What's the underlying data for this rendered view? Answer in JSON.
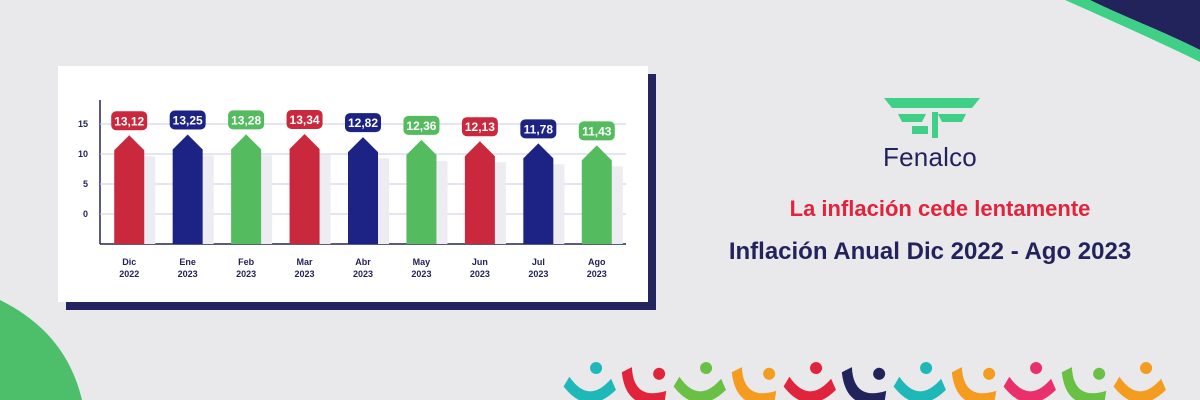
{
  "brand": {
    "name": "Fenalco",
    "logo_icon": "fenalco-wings-logo-icon"
  },
  "headline": "La inflación cede lentamente",
  "subheadline": "Inflación Anual Dic 2022 - Ago 2023",
  "colors": {
    "red": "#c9283d",
    "navy": "#1d2384",
    "green": "#55bb5f",
    "headline_red": "#e0243c",
    "dark_navy": "#23235c",
    "teal_logo": "#3fcf86"
  },
  "decor": {
    "bottom_icons": [
      "person-icon-teal",
      "person-icon-red",
      "person-icon-green",
      "person-icon-orange",
      "person-icon-red",
      "person-icon-navy",
      "person-icon-teal",
      "person-icon-orange",
      "person-icon-pink",
      "person-icon-green",
      "person-icon-orange"
    ]
  },
  "chart_data": {
    "type": "bar",
    "title": "",
    "xlabel": "",
    "ylabel": "",
    "categories": [
      [
        "Dic",
        "2022"
      ],
      [
        "Ene",
        "2023"
      ],
      [
        "Feb",
        "2023"
      ],
      [
        "Mar",
        "2023"
      ],
      [
        "Abr",
        "2023"
      ],
      [
        "May",
        "2023"
      ],
      [
        "Jun",
        "2023"
      ],
      [
        "Jul",
        "2023"
      ],
      [
        "Ago",
        "2023"
      ]
    ],
    "values": [
      13.12,
      13.25,
      13.28,
      13.34,
      12.82,
      12.36,
      12.13,
      11.78,
      11.43
    ],
    "value_labels": [
      "13,12",
      "13,25",
      "13,28",
      "13,34",
      "12,82",
      "12,36",
      "12,13",
      "11,78",
      "11,43"
    ],
    "bar_colors": [
      "red",
      "navy",
      "green",
      "red",
      "navy",
      "green",
      "red",
      "navy",
      "green"
    ],
    "y_ticks": [
      0,
      5,
      10,
      15
    ],
    "ylim": [
      0,
      15
    ],
    "grid": true,
    "legend": "none"
  }
}
